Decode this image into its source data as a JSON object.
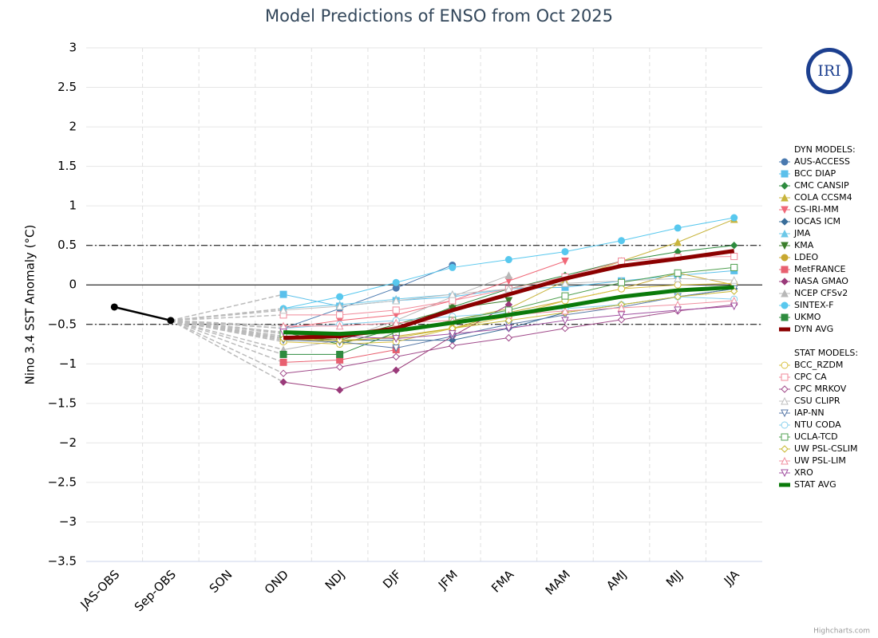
{
  "chart_data": {
    "type": "line",
    "title": "Model Predictions of ENSO from Oct 2025",
    "y_label": "Nino 3.4 SST Anomaly (°C)",
    "credits": "Highcharts.com",
    "logo_text": "IRI",
    "categories": [
      "JAS-OBS",
      "Sep-OBS",
      "SON",
      "OND",
      "NDJ",
      "DJF",
      "JFM",
      "FMA",
      "MAM",
      "AMJ",
      "MJJ",
      "JJA"
    ],
    "ylim": [
      -3.5,
      3
    ],
    "yticks": [
      3,
      2.5,
      2,
      1.5,
      1,
      0.5,
      0,
      {
        "value": -0.5,
        "label": "−0.5"
      },
      {
        "value": -1,
        "label": "−1"
      },
      {
        "value": -1.5,
        "label": "−1.5"
      },
      {
        "value": -2,
        "label": "−2"
      },
      {
        "value": -2.5,
        "label": "−2.5"
      },
      {
        "value": -3,
        "label": "−3"
      },
      {
        "value": -3.5,
        "label": "−3.5"
      }
    ],
    "reference_lines": [
      {
        "value": 0,
        "style": "solid"
      },
      {
        "value": 0.5,
        "style": "dashdot"
      },
      {
        "value": -0.5,
        "style": "dashdot"
      }
    ],
    "observed": {
      "color": "#000000",
      "values": [
        -0.28,
        -0.45,
        null,
        null,
        null,
        null,
        null,
        null,
        null,
        null,
        null,
        null
      ]
    },
    "legend_groups": [
      "DYN MODELS:",
      "STAT MODELS:"
    ],
    "series": [
      {
        "name": "AUS-ACCESS",
        "group": 0,
        "color": "#4a7ab0",
        "symbol": "circle",
        "filled": true,
        "values": [
          null,
          null,
          null,
          -0.55,
          -0.3,
          -0.04,
          0.25,
          null,
          null,
          null,
          null,
          null
        ]
      },
      {
        "name": "BCC DIAP",
        "group": 0,
        "color": "#5bc0eb",
        "symbol": "square",
        "filled": true,
        "values": [
          null,
          null,
          null,
          -0.12,
          -0.27,
          -0.2,
          -0.15,
          -0.05,
          -0.03,
          0.05,
          0.12,
          0.18
        ]
      },
      {
        "name": "CMC CANSIP",
        "group": 0,
        "color": "#2e8b3e",
        "symbol": "diamond",
        "filled": true,
        "values": [
          null,
          null,
          null,
          -0.6,
          -0.75,
          -0.55,
          -0.28,
          -0.05,
          0.12,
          0.3,
          0.42,
          0.5
        ]
      },
      {
        "name": "COLA CCSM4",
        "group": 0,
        "color": "#c8b43c",
        "symbol": "triangle",
        "filled": true,
        "values": [
          null,
          null,
          null,
          -0.7,
          -0.65,
          -0.6,
          -0.45,
          -0.3,
          0.05,
          0.3,
          0.54,
          0.83
        ]
      },
      {
        "name": "CS-IRI-MM",
        "group": 0,
        "color": "#f06878",
        "symbol": "triangle-down",
        "filled": true,
        "values": [
          null,
          null,
          null,
          -0.55,
          -0.45,
          -0.38,
          -0.2,
          0.05,
          0.3,
          null,
          null,
          null
        ]
      },
      {
        "name": "IOCAS ICM",
        "group": 0,
        "color": "#3a6e9a",
        "symbol": "diamond",
        "filled": true,
        "values": [
          null,
          null,
          null,
          -0.65,
          -0.7,
          -0.7,
          -0.7,
          -0.55,
          -0.35,
          -0.25,
          -0.15,
          -0.05
        ]
      },
      {
        "name": "JMA",
        "group": 0,
        "color": "#6cc8e8",
        "symbol": "triangle",
        "filled": true,
        "values": [
          null,
          null,
          null,
          -0.3,
          -0.25,
          -0.18,
          -0.12,
          null,
          null,
          null,
          null,
          null
        ]
      },
      {
        "name": "KMA",
        "group": 0,
        "color": "#3a7d2a",
        "symbol": "triangle-down",
        "filled": true,
        "values": [
          null,
          null,
          null,
          -0.65,
          -0.7,
          -0.5,
          -0.3,
          -0.2,
          null,
          null,
          null,
          null
        ]
      },
      {
        "name": "LDEO",
        "group": 0,
        "color": "#c8a830",
        "symbol": "circle",
        "filled": true,
        "values": [
          null,
          null,
          null,
          -0.68,
          -0.72,
          -0.65,
          -0.55,
          -0.35,
          -0.2,
          -0.05,
          0.15,
          0.0
        ]
      },
      {
        "name": "MetFRANCE",
        "group": 0,
        "color": "#e86070",
        "symbol": "square",
        "filled": true,
        "values": [
          null,
          null,
          null,
          -0.98,
          -0.95,
          -0.82,
          null,
          null,
          null,
          null,
          null,
          null
        ]
      },
      {
        "name": "NASA GMAO",
        "group": 0,
        "color": "#9a3a7a",
        "symbol": "diamond",
        "filled": true,
        "values": [
          null,
          null,
          null,
          -1.23,
          -1.33,
          -1.08,
          -0.65,
          -0.25,
          null,
          null,
          null,
          null
        ]
      },
      {
        "name": "NCEP CFSv2",
        "group": 0,
        "color": "#b8b8b8",
        "symbol": "triangle",
        "filled": true,
        "values": [
          null,
          null,
          null,
          -0.82,
          -0.7,
          -0.45,
          -0.15,
          0.12,
          null,
          null,
          null,
          null
        ]
      },
      {
        "name": "SINTEX-F",
        "group": 0,
        "color": "#58c8ee",
        "symbol": "circle",
        "filled": true,
        "values": [
          null,
          null,
          null,
          -0.3,
          -0.15,
          0.03,
          0.22,
          0.32,
          0.42,
          0.56,
          0.72,
          0.85
        ]
      },
      {
        "name": "UKMO",
        "group": 0,
        "color": "#2e8b3e",
        "symbol": "square",
        "filled": true,
        "values": [
          null,
          null,
          null,
          -0.88,
          -0.88,
          -0.6,
          null,
          null,
          null,
          null,
          null,
          null
        ]
      },
      {
        "name": "DYN AVG",
        "group": 0,
        "color": "#8b0000",
        "symbol": "none",
        "thick": true,
        "values": [
          null,
          null,
          null,
          -0.67,
          -0.65,
          -0.55,
          -0.32,
          -0.12,
          0.08,
          0.24,
          0.33,
          0.43
        ]
      },
      {
        "name": "BCC_RZDM",
        "group": 1,
        "color": "#d8c040",
        "symbol": "circle",
        "filled": false,
        "values": [
          null,
          null,
          null,
          -0.72,
          -0.75,
          -0.72,
          -0.55,
          -0.4,
          -0.2,
          -0.05,
          0.0,
          0.02
        ]
      },
      {
        "name": "CPC CA",
        "group": 1,
        "color": "#f08a9a",
        "symbol": "square",
        "filled": false,
        "values": [
          null,
          null,
          null,
          -0.38,
          -0.38,
          -0.32,
          -0.2,
          -0.05,
          0.1,
          0.3,
          0.35,
          0.36
        ]
      },
      {
        "name": "CPC MRKOV",
        "group": 1,
        "color": "#a04a8a",
        "symbol": "diamond",
        "filled": false,
        "values": [
          null,
          null,
          null,
          -1.12,
          -1.04,
          -0.91,
          -0.77,
          -0.67,
          -0.55,
          -0.44,
          -0.33,
          -0.25
        ]
      },
      {
        "name": "CSU CLIPR",
        "group": 1,
        "color": "#c0c0c0",
        "symbol": "triangle",
        "filled": false,
        "values": [
          null,
          null,
          null,
          -0.32,
          -0.27,
          -0.2,
          -0.12,
          -0.05,
          0.02,
          0.05,
          0.08,
          0.06
        ]
      },
      {
        "name": "IAP-NN",
        "group": 1,
        "color": "#5a7aa8",
        "symbol": "triangle-down",
        "filled": false,
        "values": [
          null,
          null,
          null,
          -0.7,
          -0.72,
          -0.8,
          -0.65,
          -0.5,
          -0.38,
          -0.28,
          -0.15,
          -0.05
        ]
      },
      {
        "name": "NTU CODA",
        "group": 1,
        "color": "#88d0ee",
        "symbol": "circle",
        "filled": false,
        "values": [
          null,
          null,
          null,
          -0.55,
          -0.5,
          -0.45,
          -0.4,
          -0.35,
          -0.3,
          -0.25,
          -0.15,
          -0.18
        ]
      },
      {
        "name": "UCLA-TCD",
        "group": 1,
        "color": "#50a050",
        "symbol": "square",
        "filled": false,
        "values": [
          null,
          null,
          null,
          -0.62,
          -0.65,
          -0.6,
          -0.45,
          -0.32,
          -0.14,
          0.03,
          0.15,
          0.22
        ]
      },
      {
        "name": "UW PSL-CSLIM",
        "group": 1,
        "color": "#c8b830",
        "symbol": "diamond",
        "filled": false,
        "values": [
          null,
          null,
          null,
          -0.68,
          -0.7,
          -0.67,
          -0.55,
          -0.45,
          -0.35,
          -0.25,
          -0.15,
          -0.08
        ]
      },
      {
        "name": "UW PSL-LIM",
        "group": 1,
        "color": "#f090a0",
        "symbol": "triangle",
        "filled": false,
        "values": [
          null,
          null,
          null,
          -0.52,
          -0.52,
          -0.48,
          -0.45,
          -0.38,
          -0.33,
          -0.29,
          -0.25,
          -0.2
        ]
      },
      {
        "name": "XRO",
        "group": 1,
        "color": "#a050a0",
        "symbol": "triangle-down",
        "filled": false,
        "values": [
          null,
          null,
          null,
          -0.6,
          -0.65,
          -0.68,
          -0.62,
          -0.55,
          -0.45,
          -0.38,
          -0.32,
          -0.27
        ]
      },
      {
        "name": "STAT AVG",
        "group": 1,
        "color": "#0a7a0a",
        "symbol": "none",
        "thick": true,
        "values": [
          null,
          null,
          null,
          -0.6,
          -0.62,
          -0.58,
          -0.48,
          -0.38,
          -0.27,
          -0.15,
          -0.07,
          -0.03
        ]
      }
    ]
  }
}
